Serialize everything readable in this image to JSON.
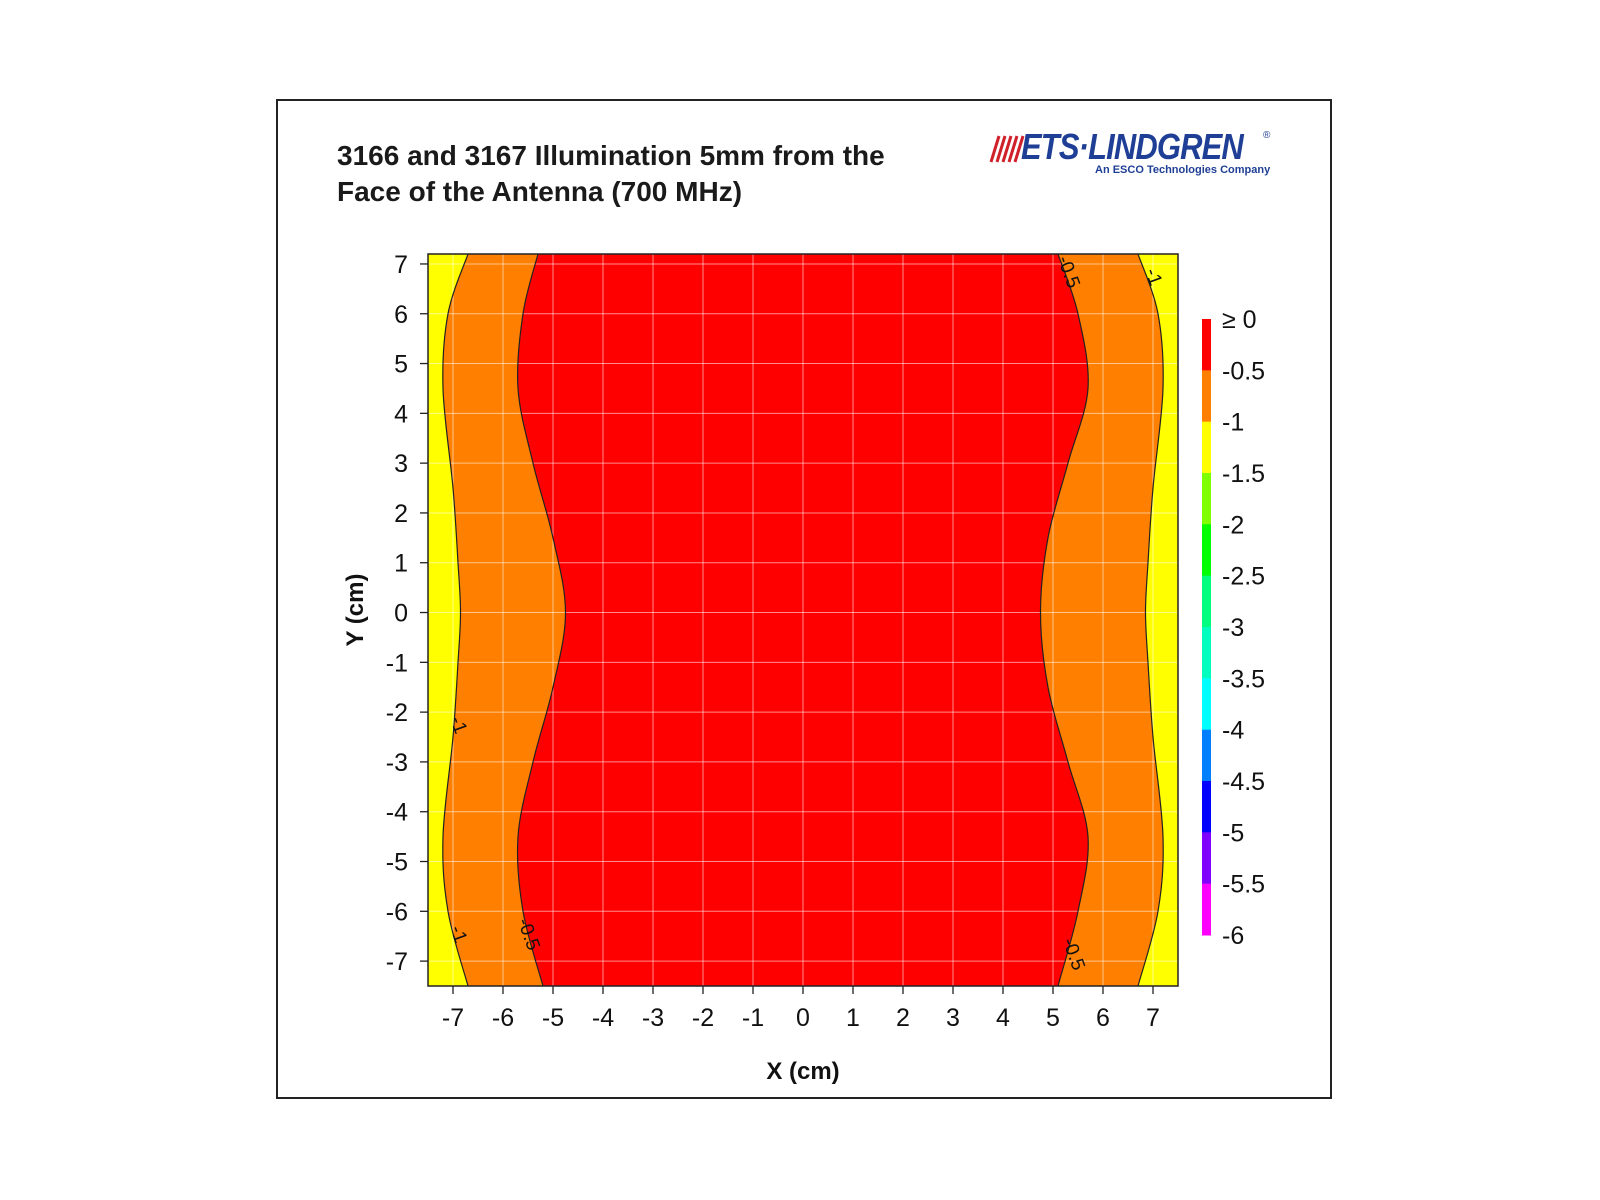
{
  "logo": {
    "word": "ETS·LINDGREN",
    "registered": "®",
    "tagline": "An ESCO Technologies Company",
    "color": "#1f3f96",
    "wave_color": "#d0202a"
  },
  "chart_data": {
    "type": "contour",
    "title": "3166 and 3167 Illumination 5mm from the Face of the Antenna (700 MHz)",
    "title_lines": [
      "3166 and 3167 Illumination 5mm from the",
      "Face of the Antenna (700 MHz)"
    ],
    "xlabel": "X (cm)",
    "ylabel": "Y (cm)",
    "xlim": [
      -7.5,
      7.5
    ],
    "ylim": [
      -7.5,
      7.2
    ],
    "x_ticks": [
      -7,
      -6,
      -5,
      -4,
      -3,
      -2,
      -1,
      0,
      1,
      2,
      3,
      4,
      5,
      6,
      7
    ],
    "y_ticks": [
      -7,
      -6,
      -5,
      -4,
      -3,
      -2,
      -1,
      0,
      1,
      2,
      3,
      4,
      5,
      6,
      7
    ],
    "grid": true,
    "levels": [
      {
        "label": "≥ 0",
        "color": "#ff0000"
      },
      {
        "label": "-0.5",
        "color": "#ff7f00"
      },
      {
        "label": "-1",
        "color": "#ffff00"
      },
      {
        "label": "-1.5",
        "color": "#7fff00"
      },
      {
        "label": "-2",
        "color": "#00ff00"
      },
      {
        "label": "-2.5",
        "color": "#00ff7f"
      },
      {
        "label": "-3",
        "color": "#00ffbf"
      },
      {
        "label": "-3.5",
        "color": "#00ffff"
      },
      {
        "label": "-4",
        "color": "#0080ff"
      },
      {
        "label": "-4.5",
        "color": "#0000ff"
      },
      {
        "label": "-5",
        "color": "#7f00ff"
      },
      {
        "label": "-5.5",
        "color": "#ff00ff"
      },
      {
        "label": "-6",
        "color": "#ff00ff"
      }
    ],
    "regions": [
      {
        "level": "-1",
        "color": "#ffff00",
        "description": "outer edges"
      },
      {
        "level": "-0.5",
        "color": "#ff7f00"
      },
      {
        "level": "≥ 0",
        "color": "#ff0000"
      }
    ],
    "contours": [
      {
        "level": "-1",
        "color": "#ff7f00",
        "left": [
          [
            -6.7,
            7.2
          ],
          [
            -7.1,
            6.0
          ],
          [
            -7.2,
            4.5
          ],
          [
            -7.0,
            2.5
          ],
          [
            -6.9,
            1.0
          ],
          [
            -6.85,
            0
          ],
          [
            -6.9,
            -1.0
          ],
          [
            -7.0,
            -2.5
          ],
          [
            -7.2,
            -4.5
          ],
          [
            -7.1,
            -6.0
          ],
          [
            -6.7,
            -7.5
          ]
        ],
        "right": [
          [
            6.7,
            7.2
          ],
          [
            7.1,
            6.0
          ],
          [
            7.2,
            4.5
          ],
          [
            7.0,
            2.5
          ],
          [
            6.9,
            1.0
          ],
          [
            6.85,
            0
          ],
          [
            6.9,
            -1.0
          ],
          [
            7.0,
            -2.5
          ],
          [
            7.2,
            -4.5
          ],
          [
            7.1,
            -6.0
          ],
          [
            6.7,
            -7.5
          ]
        ]
      },
      {
        "level": "≥ 0",
        "color": "#ff0000",
        "left": [
          [
            -5.3,
            7.2
          ],
          [
            -5.6,
            6.0
          ],
          [
            -5.7,
            4.5
          ],
          [
            -5.4,
            3.0
          ],
          [
            -5.0,
            1.5
          ],
          [
            -4.75,
            0
          ],
          [
            -5.0,
            -1.5
          ],
          [
            -5.4,
            -3.0
          ],
          [
            -5.7,
            -4.5
          ],
          [
            -5.6,
            -6.0
          ],
          [
            -5.2,
            -7.5
          ]
        ],
        "right": [
          [
            5.1,
            7.2
          ],
          [
            5.5,
            6.0
          ],
          [
            5.7,
            4.5
          ],
          [
            5.3,
            3.0
          ],
          [
            4.9,
            1.5
          ],
          [
            4.75,
            0
          ],
          [
            4.9,
            -1.5
          ],
          [
            5.3,
            -3.0
          ],
          [
            5.7,
            -4.5
          ],
          [
            5.5,
            -6.0
          ],
          [
            5.1,
            -7.5
          ]
        ]
      }
    ],
    "contour_labels": [
      {
        "text": "-0.5",
        "x": 5.2,
        "y": 6.8
      },
      {
        "text": "-1",
        "x": 6.9,
        "y": 6.7
      },
      {
        "text": "-1",
        "x": -7.0,
        "y": -2.3
      },
      {
        "text": "-1",
        "x": -7.0,
        "y": -6.5
      },
      {
        "text": "-0.5",
        "x": -5.6,
        "y": -6.5
      },
      {
        "text": "-0.5",
        "x": 5.3,
        "y": -6.9
      }
    ]
  }
}
